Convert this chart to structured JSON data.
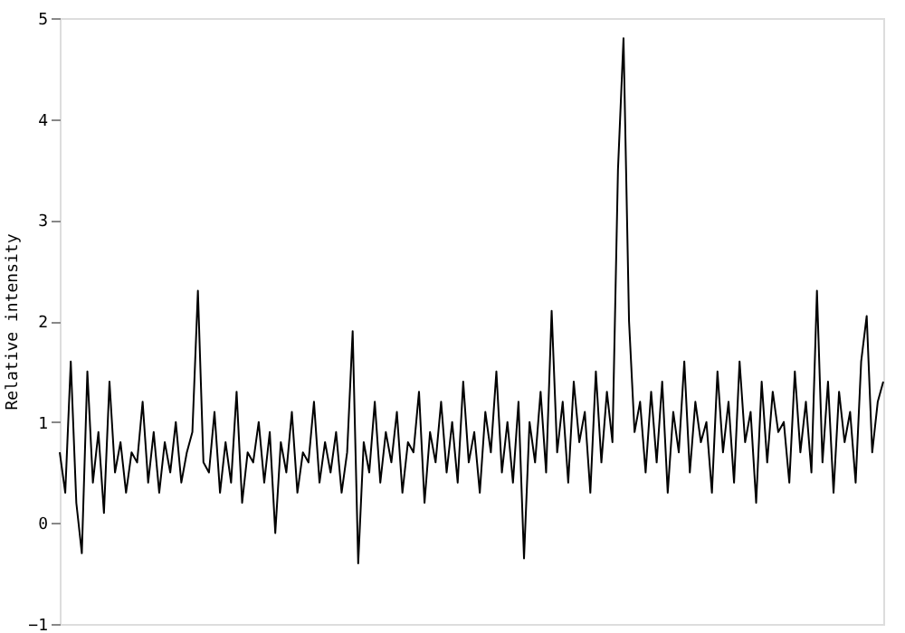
{
  "chart_data": {
    "type": "line",
    "ylabel": "Relative intensity",
    "ylim": [
      -1,
      5
    ],
    "yticks": [
      -1,
      0,
      1,
      2,
      3,
      4,
      5
    ],
    "tick_labels": "y",
    "grid": false,
    "categories": [
      null,
      null,
      null,
      null,
      null,
      null,
      null,
      null,
      null,
      null,
      null,
      null,
      null,
      null,
      null,
      null,
      null,
      null,
      null,
      null,
      null,
      null,
      null,
      null,
      null,
      null,
      null,
      null,
      null,
      null,
      null,
      null,
      null,
      null,
      null,
      null,
      null,
      null,
      null,
      null,
      null,
      null,
      null,
      null,
      null,
      null,
      null,
      null,
      null,
      null,
      null,
      null,
      null,
      null,
      null,
      null,
      null,
      null,
      null,
      null,
      null,
      null,
      null,
      null,
      null,
      null,
      null,
      null,
      null,
      null,
      null,
      null,
      null,
      null,
      null,
      null,
      null,
      null,
      null,
      null,
      null,
      null,
      null,
      null,
      null,
      null,
      null,
      null,
      null,
      null,
      null,
      null,
      null,
      null,
      null,
      null,
      null,
      null,
      null,
      null,
      null,
      null,
      null,
      null,
      null,
      null,
      null,
      null,
      null,
      null,
      null,
      null,
      null,
      null,
      null,
      null,
      null,
      null,
      null,
      null,
      null,
      null,
      null,
      null,
      null,
      null,
      null,
      null,
      null,
      null,
      null,
      null,
      null,
      null,
      null,
      null,
      null,
      null,
      null,
      null,
      null,
      null,
      null,
      null,
      null,
      null,
      null,
      null,
      null,
      null
    ],
    "series": [
      {
        "color": "#000000",
        "values": [
          0.7,
          0.3,
          1.6,
          0.2,
          -0.3,
          1.5,
          0.4,
          0.9,
          0.1,
          1.4,
          0.5,
          0.8,
          0.3,
          0.7,
          0.6,
          1.2,
          0.4,
          0.9,
          0.3,
          0.8,
          0.5,
          1.0,
          0.4,
          0.7,
          0.9,
          2.3,
          0.6,
          0.5,
          1.1,
          0.3,
          0.8,
          0.4,
          1.3,
          0.2,
          0.7,
          0.6,
          1.0,
          0.4,
          0.9,
          -0.1,
          0.8,
          0.5,
          1.1,
          0.3,
          0.7,
          0.6,
          1.2,
          0.4,
          0.8,
          0.5,
          0.9,
          0.3,
          0.7,
          1.9,
          -0.4,
          0.8,
          0.5,
          1.2,
          0.4,
          0.9,
          0.6,
          1.1,
          0.3,
          0.8,
          0.7,
          1.3,
          0.2,
          0.9,
          0.6,
          1.2,
          0.5,
          1.0,
          0.4,
          1.4,
          0.6,
          0.9,
          0.3,
          1.1,
          0.7,
          1.5,
          0.5,
          1.0,
          0.4,
          1.2,
          -0.35,
          1.0,
          0.6,
          1.3,
          0.5,
          2.1,
          0.7,
          1.2,
          0.4,
          1.4,
          0.8,
          1.1,
          0.3,
          1.5,
          0.6,
          1.3,
          0.8,
          3.5,
          4.8,
          2.0,
          0.9,
          1.2,
          0.5,
          1.3,
          0.6,
          1.4,
          0.3,
          1.1,
          0.7,
          1.6,
          0.5,
          1.2,
          0.8,
          1.0,
          0.3,
          1.5,
          0.7,
          1.2,
          0.4,
          1.6,
          0.8,
          1.1,
          0.2,
          1.4,
          0.6,
          1.3,
          0.9,
          1.0,
          0.4,
          1.5,
          0.7,
          1.2,
          0.5,
          2.3,
          0.6,
          1.4,
          0.3,
          1.3,
          0.8,
          1.1,
          0.4,
          1.6,
          2.05,
          0.7,
          1.2,
          1.4
        ]
      }
    ]
  }
}
